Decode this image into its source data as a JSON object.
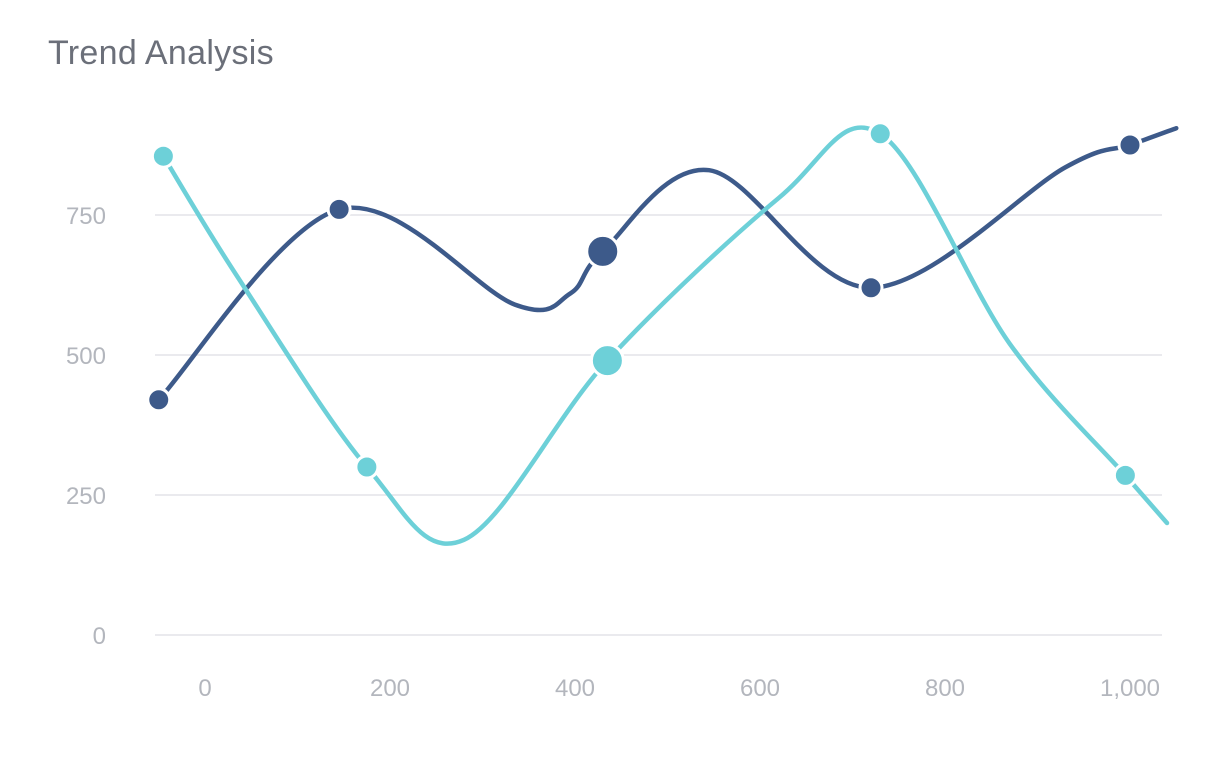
{
  "title": "Trend Analysis",
  "chart_data": {
    "type": "line",
    "title": "Trend Analysis",
    "xlabel": "",
    "ylabel": "",
    "xlim": [
      -60,
      1060
    ],
    "ylim": [
      0,
      1000
    ],
    "x_ticks": [
      0,
      200,
      400,
      600,
      800,
      1000
    ],
    "x_tick_labels": [
      "0",
      "200",
      "400",
      "600",
      "800",
      "1,000"
    ],
    "y_ticks": [
      0,
      250,
      500,
      750
    ],
    "y_tick_labels": [
      "0",
      "250",
      "500",
      "750"
    ],
    "grid": "horizontal",
    "legend": "none",
    "series": [
      {
        "color": "#3d5a8a",
        "points": [
          {
            "x": -50,
            "y": 420
          },
          {
            "x": 145,
            "y": 760
          },
          {
            "x": 335,
            "y": 590
          },
          {
            "x": 395,
            "y": 610
          },
          {
            "x": 430,
            "y": 685,
            "size": "large"
          },
          {
            "x": 545,
            "y": 830
          },
          {
            "x": 720,
            "y": 620
          },
          {
            "x": 930,
            "y": 835
          },
          {
            "x": 1000,
            "y": 875
          },
          {
            "x": 1050,
            "y": 905
          }
        ],
        "markers": [
          0,
          1,
          4,
          6,
          8
        ]
      },
      {
        "color": "#6dd0d8",
        "points": [
          {
            "x": -45,
            "y": 855
          },
          {
            "x": 35,
            "y": 640
          },
          {
            "x": 175,
            "y": 300
          },
          {
            "x": 280,
            "y": 170
          },
          {
            "x": 435,
            "y": 490,
            "size": "large"
          },
          {
            "x": 620,
            "y": 780
          },
          {
            "x": 730,
            "y": 895
          },
          {
            "x": 870,
            "y": 520
          },
          {
            "x": 995,
            "y": 285
          },
          {
            "x": 1040,
            "y": 200
          }
        ],
        "markers": [
          0,
          2,
          4,
          6,
          8
        ]
      }
    ]
  }
}
